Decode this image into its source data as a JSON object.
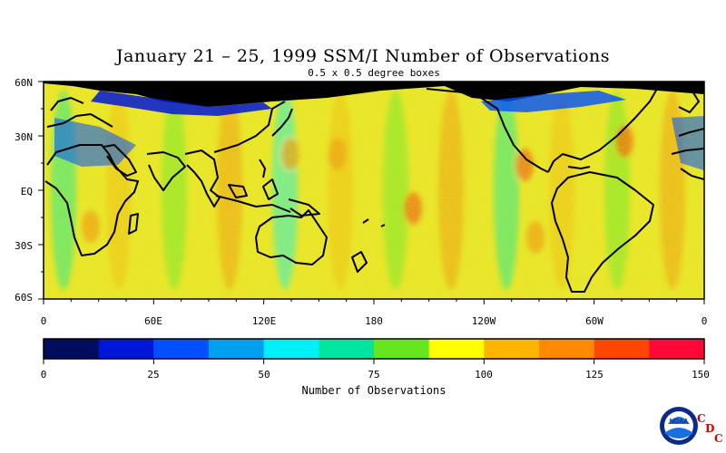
{
  "title": "January 21 – 25, 1999 SSM/I Number of Observations",
  "subtitle": "0.5 x 0.5 degree boxes",
  "lat_labels": [
    "60N",
    "30N",
    "EQ",
    "30S",
    "60S"
  ],
  "lon_labels": [
    "0",
    "60E",
    "120E",
    "180",
    "120W",
    "60W",
    "0"
  ],
  "colorbar": {
    "title": "Number of Observations",
    "tick_labels": [
      "0",
      "25",
      "50",
      "75",
      "100",
      "125",
      "150"
    ],
    "colors": [
      "#000c5c",
      "#0016d8",
      "#0050ff",
      "#00a0f0",
      "#00f0f8",
      "#00e6a0",
      "#66e61e",
      "#ffff00",
      "#ffb400",
      "#ff8a00",
      "#ff4600",
      "#ff0838"
    ]
  },
  "logo": {
    "badge_text": "NOAA",
    "letters": [
      "C",
      "D",
      "C"
    ]
  }
}
